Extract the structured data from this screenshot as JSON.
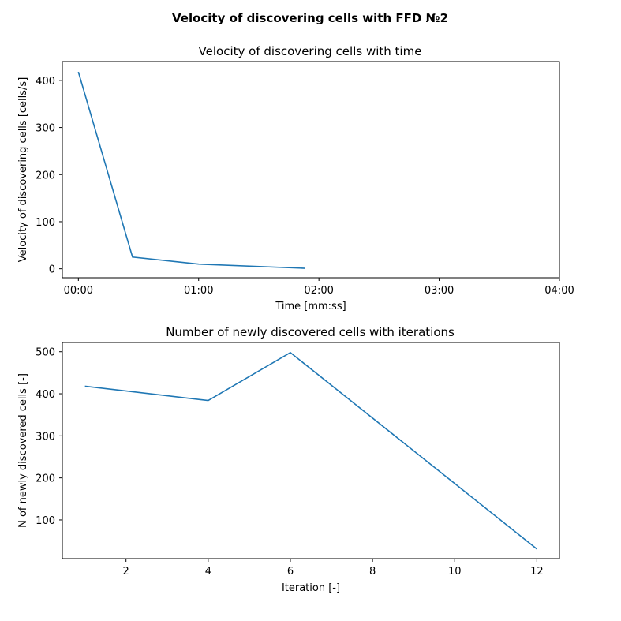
{
  "suptitle": "Velocity of discovering cells with FFD №2",
  "chart_data": [
    {
      "type": "line",
      "title": "Velocity of discovering cells with time",
      "xlabel": "Time [mm:ss]",
      "ylabel": "Velocity of discovering cells [cells/s]",
      "x_seconds": [
        0,
        27,
        60,
        113
      ],
      "x_ticks": [
        "00:00",
        "01:00",
        "02:00",
        "03:00",
        "04:00"
      ],
      "xlim_seconds": [
        -8,
        240
      ],
      "y_ticks": [
        0,
        100,
        200,
        300,
        400
      ],
      "ylim": [
        -19,
        440
      ],
      "grid": false,
      "color": "#1f77b4",
      "series": [
        {
          "values": [
            418,
            25,
            10,
            1
          ]
        }
      ]
    },
    {
      "type": "line",
      "title": "Number of newly discovered cells with iterations",
      "xlabel": "Iteration [-]",
      "ylabel": "N of newly discovered cells [-]",
      "x": [
        1,
        4,
        6,
        12
      ],
      "x_ticks": [
        2,
        4,
        6,
        8,
        10,
        12
      ],
      "xlim": [
        0.45,
        12.55
      ],
      "y_ticks": [
        100,
        200,
        300,
        400,
        500
      ],
      "ylim": [
        8,
        522
      ],
      "grid": false,
      "color": "#1f77b4",
      "series": [
        {
          "values": [
            418,
            384,
            498,
            31
          ]
        }
      ]
    }
  ]
}
